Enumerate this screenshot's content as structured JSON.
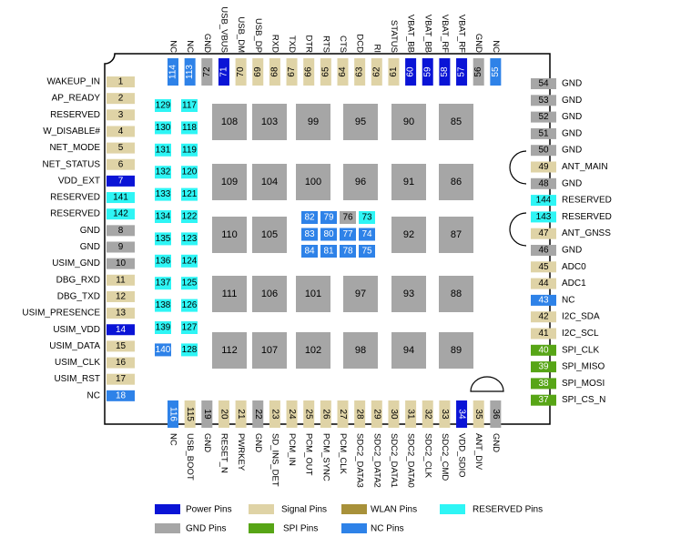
{
  "colors": {
    "power": "#0a14d6",
    "signal": "#dfd3a6",
    "wlan": "#a8913a",
    "reserved": "#2ef5f5",
    "gnd": "#a6a6a6",
    "spi": "#57a516",
    "nc": "#2e82e8"
  },
  "legend": [
    {
      "label": "Power Pins",
      "type": "power"
    },
    {
      "label": "Signal Pins",
      "type": "signal"
    },
    {
      "label": "WLAN Pins",
      "type": "wlan"
    },
    {
      "label": "RESERVED Pins",
      "type": "reserved"
    },
    {
      "label": "GND Pins",
      "type": "gnd"
    },
    {
      "label": "SPI  Pins",
      "type": "spi"
    },
    {
      "label": "NC Pins",
      "type": "nc"
    }
  ],
  "left_pins": [
    {
      "num": "1",
      "label": "WAKEUP_IN",
      "type": "signal"
    },
    {
      "num": "2",
      "label": "AP_READY",
      "type": "signal"
    },
    {
      "num": "3",
      "label": "RESERVED",
      "type": "signal"
    },
    {
      "num": "4",
      "label": "W_DISABLE#",
      "type": "signal"
    },
    {
      "num": "5",
      "label": "NET_MODE",
      "type": "signal"
    },
    {
      "num": "6",
      "label": "NET_STATUS",
      "type": "signal"
    },
    {
      "num": "7",
      "label": "VDD_EXT",
      "type": "power"
    },
    {
      "num": "141",
      "label": "RESERVED",
      "type": "reserved"
    },
    {
      "num": "142",
      "label": "RESERVED",
      "type": "reserved"
    },
    {
      "num": "8",
      "label": "GND",
      "type": "gnd"
    },
    {
      "num": "9",
      "label": "GND",
      "type": "gnd"
    },
    {
      "num": "10",
      "label": "USIM_GND",
      "type": "gnd"
    },
    {
      "num": "11",
      "label": "DBG_RXD",
      "type": "signal"
    },
    {
      "num": "12",
      "label": "DBG_TXD",
      "type": "signal"
    },
    {
      "num": "13",
      "label": "USIM_PRESENCE",
      "type": "signal"
    },
    {
      "num": "14",
      "label": "USIM_VDD",
      "type": "power"
    },
    {
      "num": "15",
      "label": "USIM_DATA",
      "type": "signal"
    },
    {
      "num": "16",
      "label": "USIM_CLK",
      "type": "signal"
    },
    {
      "num": "17",
      "label": "USIM_RST",
      "type": "signal"
    },
    {
      "num": "18",
      "label": "NC",
      "type": "nc"
    }
  ],
  "right_pins": [
    {
      "num": "54",
      "label": "GND",
      "type": "gnd"
    },
    {
      "num": "53",
      "label": "GND",
      "type": "gnd"
    },
    {
      "num": "52",
      "label": "GND",
      "type": "gnd"
    },
    {
      "num": "51",
      "label": "GND",
      "type": "gnd"
    },
    {
      "num": "50",
      "label": "GND",
      "type": "gnd"
    },
    {
      "num": "49",
      "label": "ANT_MAIN",
      "type": "signal"
    },
    {
      "num": "48",
      "label": "GND",
      "type": "gnd"
    },
    {
      "num": "144",
      "label": "RESERVED",
      "type": "reserved"
    },
    {
      "num": "143",
      "label": "RESERVED",
      "type": "reserved"
    },
    {
      "num": "47",
      "label": "ANT_GNSS",
      "type": "signal"
    },
    {
      "num": "46",
      "label": "GND",
      "type": "gnd"
    },
    {
      "num": "45",
      "label": "ADC0",
      "type": "signal"
    },
    {
      "num": "44",
      "label": "ADC1",
      "type": "signal"
    },
    {
      "num": "43",
      "label": "NC",
      "type": "nc"
    },
    {
      "num": "42",
      "label": "I2C_SDA",
      "type": "signal"
    },
    {
      "num": "41",
      "label": "I2C_SCL",
      "type": "signal"
    },
    {
      "num": "40",
      "label": "SPI_CLK",
      "type": "spi"
    },
    {
      "num": "39",
      "label": "SPI_MISO",
      "type": "spi"
    },
    {
      "num": "38",
      "label": "SPI_MOSI",
      "type": "spi"
    },
    {
      "num": "37",
      "label": "SPI_CS_N",
      "type": "spi"
    }
  ],
  "top_pins": [
    {
      "num": "114",
      "label": "NC",
      "type": "nc"
    },
    {
      "num": "113",
      "label": "NC",
      "type": "nc"
    },
    {
      "num": "72",
      "label": "GND",
      "type": "gnd"
    },
    {
      "num": "71",
      "label": "USB_VBUS",
      "type": "power"
    },
    {
      "num": "70",
      "label": "USB_DM",
      "type": "signal"
    },
    {
      "num": "69",
      "label": "USB_DP",
      "type": "signal"
    },
    {
      "num": "68",
      "label": "RXD",
      "type": "signal"
    },
    {
      "num": "67",
      "label": "TXD",
      "type": "signal"
    },
    {
      "num": "66",
      "label": "DTR",
      "type": "signal"
    },
    {
      "num": "65",
      "label": "RTS",
      "type": "signal"
    },
    {
      "num": "64",
      "label": "CTS",
      "type": "signal"
    },
    {
      "num": "63",
      "label": "DCD",
      "type": "signal"
    },
    {
      "num": "62",
      "label": "RI",
      "type": "signal"
    },
    {
      "num": "61",
      "label": "STATUS",
      "type": "signal"
    },
    {
      "num": "60",
      "label": "VBAT_BB",
      "type": "power"
    },
    {
      "num": "59",
      "label": "VBAT_BB",
      "type": "power"
    },
    {
      "num": "58",
      "label": "VBAT_RF",
      "type": "power"
    },
    {
      "num": "57",
      "label": "VBAT_RF",
      "type": "power"
    },
    {
      "num": "56",
      "label": "GND",
      "type": "gnd"
    },
    {
      "num": "55",
      "label": "NC",
      "type": "nc"
    }
  ],
  "bottom_pins": [
    {
      "num": "116",
      "label": "NC",
      "type": "nc"
    },
    {
      "num": "115",
      "label": "USB_BOOT",
      "type": "signal"
    },
    {
      "num": "19",
      "label": "GND",
      "type": "gnd"
    },
    {
      "num": "20",
      "label": "RESET_N",
      "type": "signal"
    },
    {
      "num": "21",
      "label": "PWRKEY",
      "type": "signal"
    },
    {
      "num": "22",
      "label": "GND",
      "type": "gnd"
    },
    {
      "num": "23",
      "label": "SD_INS_DET",
      "type": "signal"
    },
    {
      "num": "24",
      "label": "PCM_IN",
      "type": "signal"
    },
    {
      "num": "25",
      "label": "PCM_OUT",
      "type": "signal"
    },
    {
      "num": "26",
      "label": "PCM_SYNC",
      "type": "signal"
    },
    {
      "num": "27",
      "label": "PCM_CLK",
      "type": "signal"
    },
    {
      "num": "28",
      "label": "SDC2_DATA3",
      "type": "signal"
    },
    {
      "num": "29",
      "label": "SDC2_DATA2",
      "type": "signal"
    },
    {
      "num": "30",
      "label": "SDC2_DATA1",
      "type": "signal"
    },
    {
      "num": "31",
      "label": "SDC2_DATA0",
      "type": "signal"
    },
    {
      "num": "32",
      "label": "SDC2_CLK",
      "type": "signal"
    },
    {
      "num": "33",
      "label": "SDC2_CMD",
      "type": "signal"
    },
    {
      "num": "34",
      "label": "VDD_SDIO",
      "type": "power"
    },
    {
      "num": "35",
      "label": "ANT_DIV",
      "type": "signal"
    },
    {
      "num": "36",
      "label": "GND",
      "type": "gnd"
    }
  ],
  "inner_col1": [
    "129",
    "130",
    "131",
    "132",
    "133",
    "134",
    "135",
    "136",
    "137",
    "138",
    "139",
    "140"
  ],
  "inner_col1_nc": [
    "140"
  ],
  "inner_col2": [
    "117",
    "118",
    "119",
    "120",
    "121",
    "122",
    "123",
    "124",
    "125",
    "126",
    "127",
    "128"
  ],
  "gnd_pads": [
    [
      "108",
      "103",
      "99",
      "95",
      "90",
      "85"
    ],
    [
      "109",
      "104",
      "100",
      "96",
      "91",
      "86"
    ],
    [
      "110",
      "105",
      "",
      "",
      "92",
      "87"
    ],
    [
      "111",
      "106",
      "101",
      "97",
      "93",
      "88"
    ],
    [
      "112",
      "107",
      "102",
      "98",
      "94",
      "89"
    ]
  ],
  "center_grid": [
    [
      {
        "num": "82",
        "type": "nc"
      },
      {
        "num": "79",
        "type": "nc"
      },
      {
        "num": "76",
        "type": "gnd"
      },
      {
        "num": "73",
        "type": "reserved"
      }
    ],
    [
      {
        "num": "83",
        "type": "nc"
      },
      {
        "num": "80",
        "type": "nc"
      },
      {
        "num": "77",
        "type": "nc"
      },
      {
        "num": "74",
        "type": "nc"
      }
    ],
    [
      {
        "num": "84",
        "type": "nc"
      },
      {
        "num": "81",
        "type": "nc"
      },
      {
        "num": "78",
        "type": "nc"
      },
      {
        "num": "75",
        "type": "nc"
      }
    ]
  ]
}
